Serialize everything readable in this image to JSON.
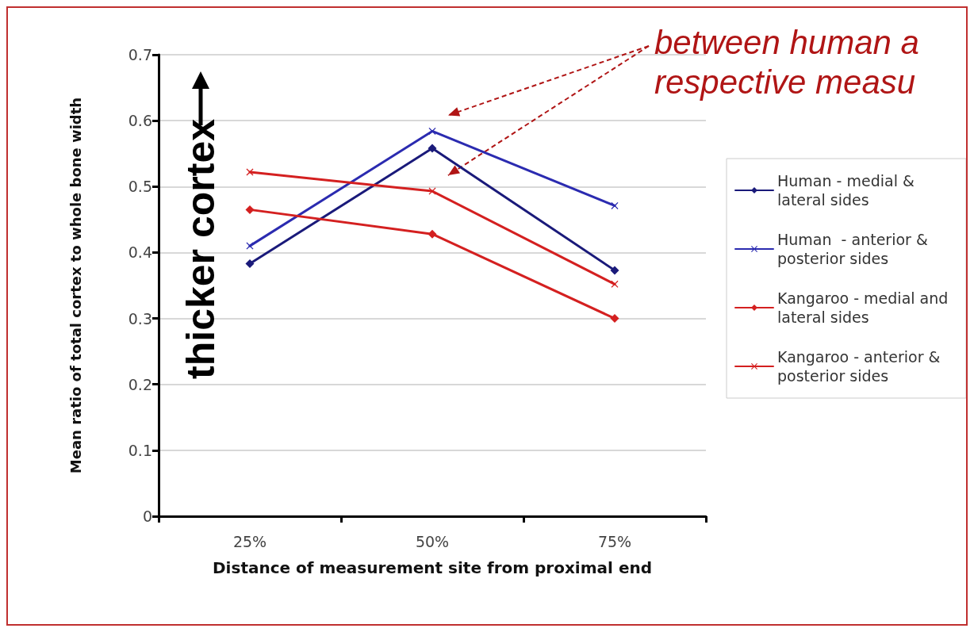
{
  "chart_data": {
    "type": "line",
    "xlabel": "Distance of measurement site from proximal end",
    "ylabel": "Mean ratio of total cortex to whole bone width",
    "categories": [
      "25%",
      "50%",
      "75%"
    ],
    "series": [
      {
        "name": "Human - medial & lateral sides",
        "color": "#1a1a7a",
        "marker": "diamond",
        "values": [
          0.383,
          0.558,
          0.373
        ]
      },
      {
        "name": "Human  - anterior & posterior sides",
        "color": "#2b2bb0",
        "marker": "cross",
        "values": [
          0.41,
          0.584,
          0.471
        ]
      },
      {
        "name": "Kangaroo - medial and lateral sides",
        "color": "#d42020",
        "marker": "diamond",
        "values": [
          0.465,
          0.428,
          0.3
        ]
      },
      {
        "name": "Kangaroo - anterior & posterior sides",
        "color": "#d42020",
        "marker": "cross",
        "values": [
          0.522,
          0.493,
          0.352
        ]
      }
    ],
    "ylim": [
      0,
      0.7
    ],
    "yticks": [
      0,
      0.1,
      0.2,
      0.3,
      0.4,
      0.5,
      0.6,
      0.7
    ],
    "grid": "y",
    "legend": "right",
    "line_style": "solid",
    "annotations": [
      "thicker cortex",
      "between human a\nrespective measu"
    ]
  }
}
